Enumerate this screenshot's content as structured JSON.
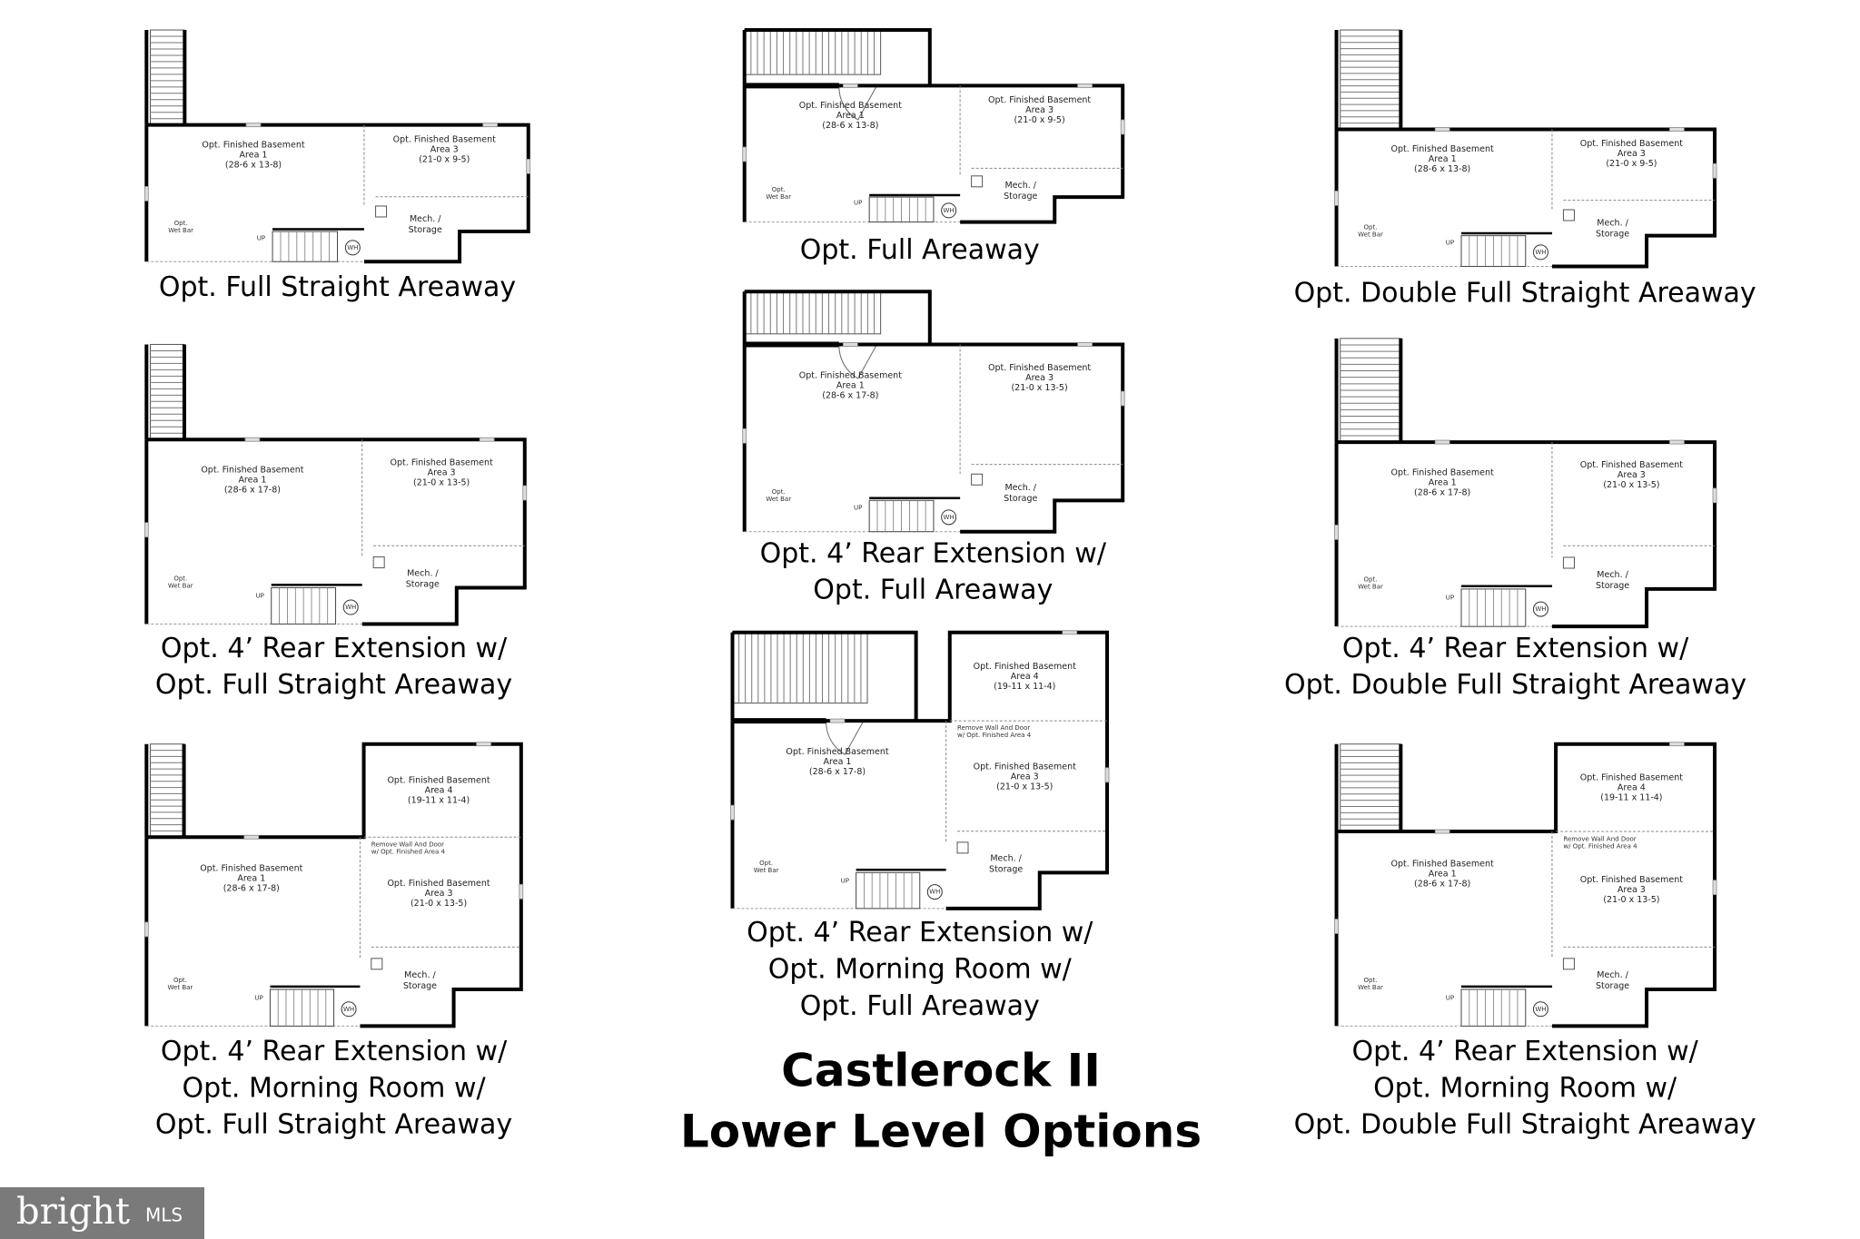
{
  "title": [
    "Castlerock II",
    "Lower Level Options"
  ],
  "logo": {
    "brand": "bright",
    "suffix": "MLS"
  },
  "plans": [
    {
      "caption": [
        "Opt. Full Straight Areaway"
      ],
      "rooms": {
        "area1": [
          "Opt. Finished Basement",
          "Area 1",
          "(28-6 x 13-8)"
        ],
        "area3": [
          "Opt. Finished Basement",
          "Area 3",
          "(21-0 x 9-5)"
        ],
        "mech": [
          "Mech. /",
          "Storage"
        ],
        "wet_bar": [
          "Opt.",
          "Wet Bar"
        ],
        "wh": [
          "WH"
        ],
        "up": [
          "UP"
        ]
      }
    },
    {
      "caption": [
        "Opt. Full Areaway"
      ],
      "rooms": {
        "area1": [
          "Opt. Finished Basement",
          "Area 1",
          "(28-6 x 13-8)"
        ],
        "area3": [
          "Opt. Finished Basement",
          "Area 3",
          "(21-0 x 9-5)"
        ],
        "mech": [
          "Mech. /",
          "Storage"
        ],
        "wet_bar": [
          "Opt.",
          "Wet Bar"
        ],
        "wh": [
          "WH"
        ],
        "up": [
          "UP"
        ]
      }
    },
    {
      "caption": [
        "Opt. Double Full Straight Areaway"
      ],
      "rooms": {
        "area1": [
          "Opt. Finished Basement",
          "Area 1",
          "(28-6 x 13-8)"
        ],
        "area3": [
          "Opt. Finished Basement",
          "Area 3",
          "(21-0 x 9-5)"
        ],
        "mech": [
          "Mech. /",
          "Storage"
        ],
        "wet_bar": [
          "Opt.",
          "Wet Bar"
        ],
        "wh": [
          "WH"
        ],
        "up": [
          "UP"
        ]
      }
    },
    {
      "caption": [
        "Opt. 4’ Rear Extension w/",
        "Opt. Full Straight Areaway"
      ],
      "rooms": {
        "area1": [
          "Opt. Finished Basement",
          "Area 1",
          "(28-6 x 17-8)"
        ],
        "area3": [
          "Opt. Finished Basement",
          "Area 3",
          "(21-0 x 13-5)"
        ],
        "mech": [
          "Mech. /",
          "Storage"
        ],
        "wet_bar": [
          "Opt.",
          "Wet Bar"
        ],
        "wh": [
          "WH"
        ],
        "up": [
          "UP"
        ]
      }
    },
    {
      "caption": [
        "Opt. 4’ Rear Extension w/",
        "Opt. Full Areaway"
      ],
      "rooms": {
        "area1": [
          "Opt. Finished Basement",
          "Area 1",
          "(28-6 x 17-8)"
        ],
        "area3": [
          "Opt. Finished Basement",
          "Area 3",
          "(21-0 x 13-5)"
        ],
        "mech": [
          "Mech. /",
          "Storage"
        ],
        "wet_bar": [
          "Opt.",
          "Wet Bar"
        ],
        "wh": [
          "WH"
        ],
        "up": [
          "UP"
        ]
      }
    },
    {
      "caption": [
        "Opt. 4’ Rear Extension w/",
        "Opt. Double Full Straight Areaway"
      ],
      "rooms": {
        "area1": [
          "Opt. Finished Basement",
          "Area 1",
          "(28-6 x 17-8)"
        ],
        "area3": [
          "Opt. Finished Basement",
          "Area 3",
          "(21-0 x 13-5)"
        ],
        "mech": [
          "Mech. /",
          "Storage"
        ],
        "wet_bar": [
          "Opt.",
          "Wet Bar"
        ],
        "wh": [
          "WH"
        ],
        "up": [
          "UP"
        ]
      }
    },
    {
      "caption": [
        "Opt. 4’ Rear Extension w/",
        "Opt. Morning Room w/",
        "Opt. Full Straight Areaway"
      ],
      "rooms": {
        "area1": [
          "Opt. Finished Basement",
          "Area 1",
          "(28-6 x 17-8)"
        ],
        "area3": [
          "Opt. Finished Basement",
          "Area 3",
          "(21-0 x 13-5)"
        ],
        "area4": [
          "Opt. Finished Basement",
          "Area 4",
          "(19-11 x 11-4)"
        ],
        "note": [
          "Remove Wall And Door",
          "w/ Opt. Finished Area 4"
        ],
        "mech": [
          "Mech. /",
          "Storage"
        ],
        "wet_bar": [
          "Opt.",
          "Wet Bar"
        ],
        "wh": [
          "WH"
        ],
        "up": [
          "UP"
        ]
      }
    },
    {
      "caption": [
        "Opt. 4’ Rear Extension w/",
        "Opt. Morning Room w/",
        "Opt. Full Areaway"
      ],
      "rooms": {
        "area1": [
          "Opt. Finished Basement",
          "Area 1",
          "(28-6 x 17-8)"
        ],
        "area3": [
          "Opt. Finished Basement",
          "Area 3",
          "(21-0 x 13-5)"
        ],
        "area4": [
          "Opt. Finished Basement",
          "Area 4",
          "(19-11 x 11-4)"
        ],
        "note": [
          "Remove Wall And Door",
          "w/ Opt. Finished Area 4"
        ],
        "mech": [
          "Mech. /",
          "Storage"
        ],
        "wet_bar": [
          "Opt.",
          "Wet Bar"
        ],
        "wh": [
          "WH"
        ],
        "up": [
          "UP"
        ]
      }
    },
    {
      "caption": [
        "Opt. 4’ Rear Extension w/",
        "Opt. Morning Room w/",
        "Opt. Double Full Straight Areaway"
      ],
      "rooms": {
        "area1": [
          "Opt. Finished Basement",
          "Area 1",
          "(28-6 x 17-8)"
        ],
        "area3": [
          "Opt. Finished Basement",
          "Area 3",
          "(21-0 x 13-5)"
        ],
        "area4": [
          "Opt. Finished Basement",
          "Area 4",
          "(19-11 x 11-4)"
        ],
        "note": [
          "Remove Wall And Door",
          "w/ Opt. Finished Area 4"
        ],
        "mech": [
          "Mech. /",
          "Storage"
        ],
        "wet_bar": [
          "Opt.",
          "Wet Bar"
        ],
        "wh": [
          "WH"
        ],
        "up": [
          "UP"
        ]
      }
    }
  ]
}
